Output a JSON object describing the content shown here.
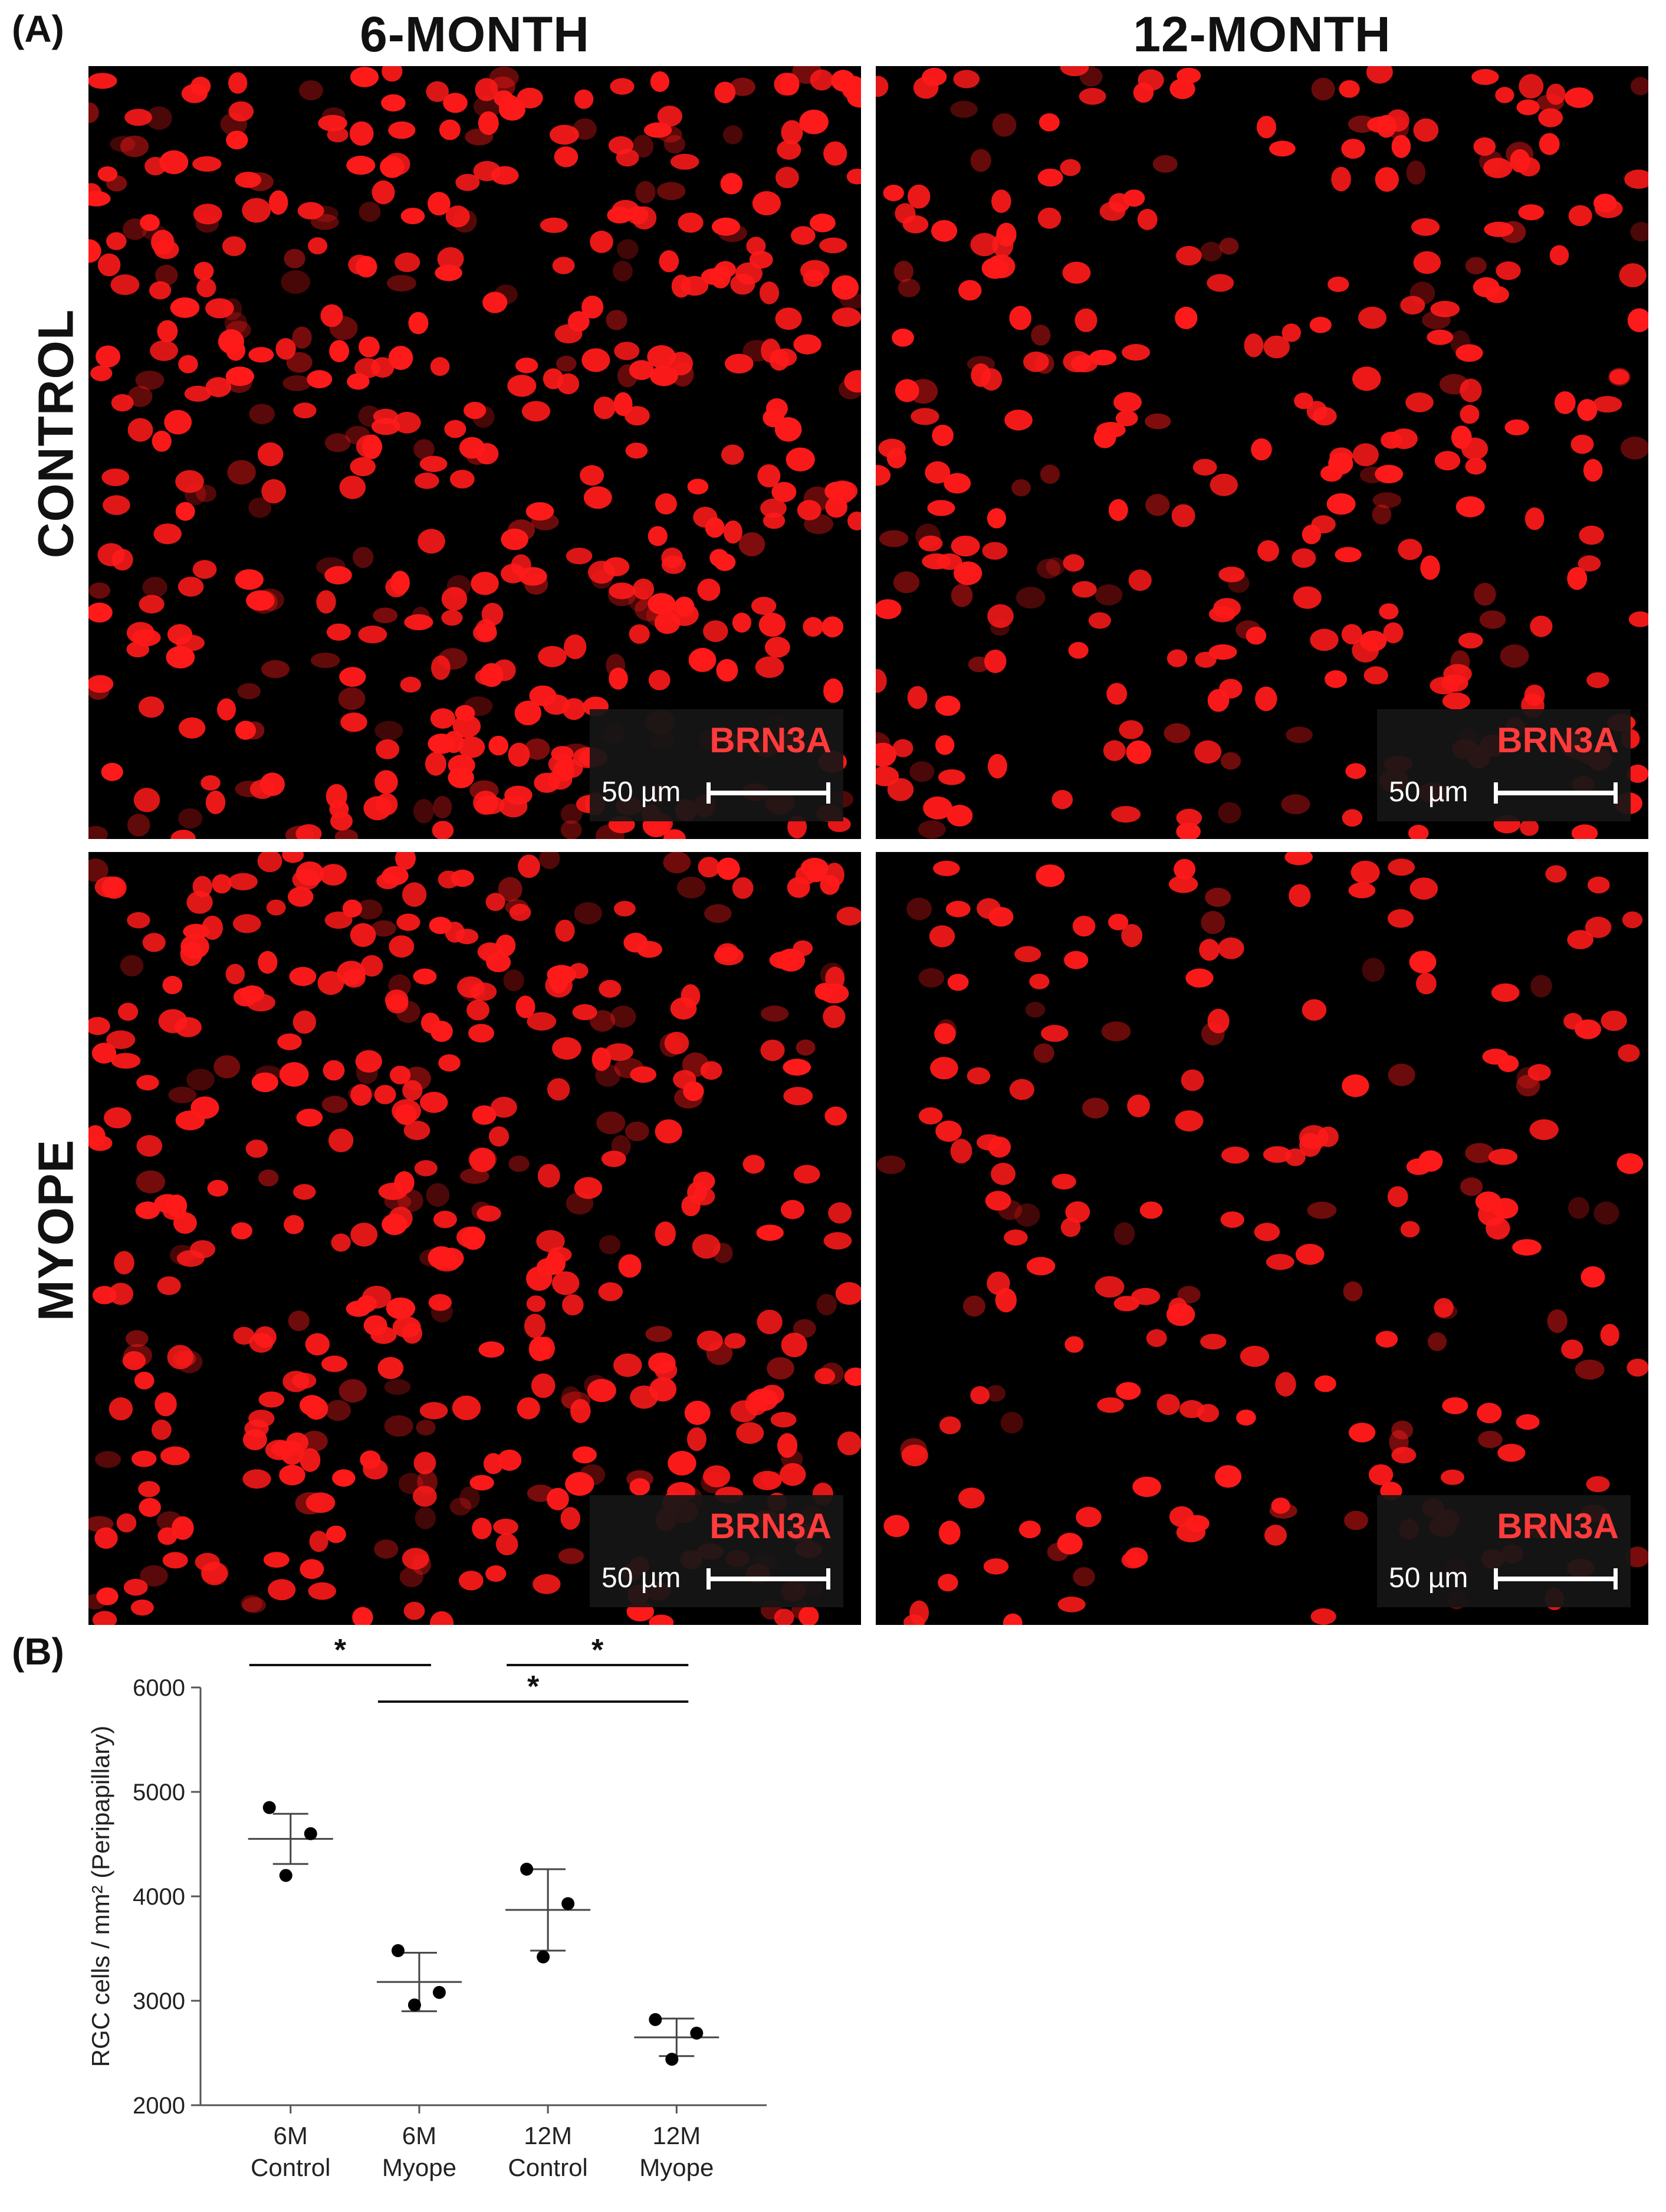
{
  "panel_a": {
    "label": "(A)",
    "columns": [
      "6-MONTH",
      "12-MONTH"
    ],
    "rows": [
      "CONTROL",
      "MYOPE"
    ],
    "marker": "BRN3A",
    "scale_bar": "50 µm"
  },
  "panel_b": {
    "label": "(B)"
  },
  "colors": {
    "nuclei": "#ff1a1a",
    "background": "#000000",
    "marker_text": "#ff3b3b"
  },
  "chart_data": {
    "type": "scatter",
    "title": "",
    "xlabel": "",
    "ylabel": "RGC cells / mm² (Peripapillary)",
    "ylim": [
      2000,
      6000
    ],
    "yticks": [
      2000,
      3000,
      4000,
      5000,
      6000
    ],
    "categories": [
      [
        "6M",
        "Control"
      ],
      [
        "6M",
        "Myope"
      ],
      [
        "12M",
        "Control"
      ],
      [
        "12M",
        "Myope"
      ]
    ],
    "points": [
      [
        4850,
        4600,
        4200
      ],
      [
        3480,
        3080,
        2960
      ],
      [
        4260,
        3930,
        3420
      ],
      [
        2820,
        2690,
        2440
      ]
    ],
    "mean": [
      4550,
      3180,
      3870,
      2650
    ],
    "sd": [
      240,
      280,
      390,
      180
    ],
    "significance": [
      {
        "from": 0,
        "to": 1,
        "label": "*"
      },
      {
        "from": 2,
        "to": 3,
        "label": "*"
      },
      {
        "from": 1,
        "to": 3,
        "label": "*"
      }
    ],
    "grid": false,
    "legend": "none"
  }
}
